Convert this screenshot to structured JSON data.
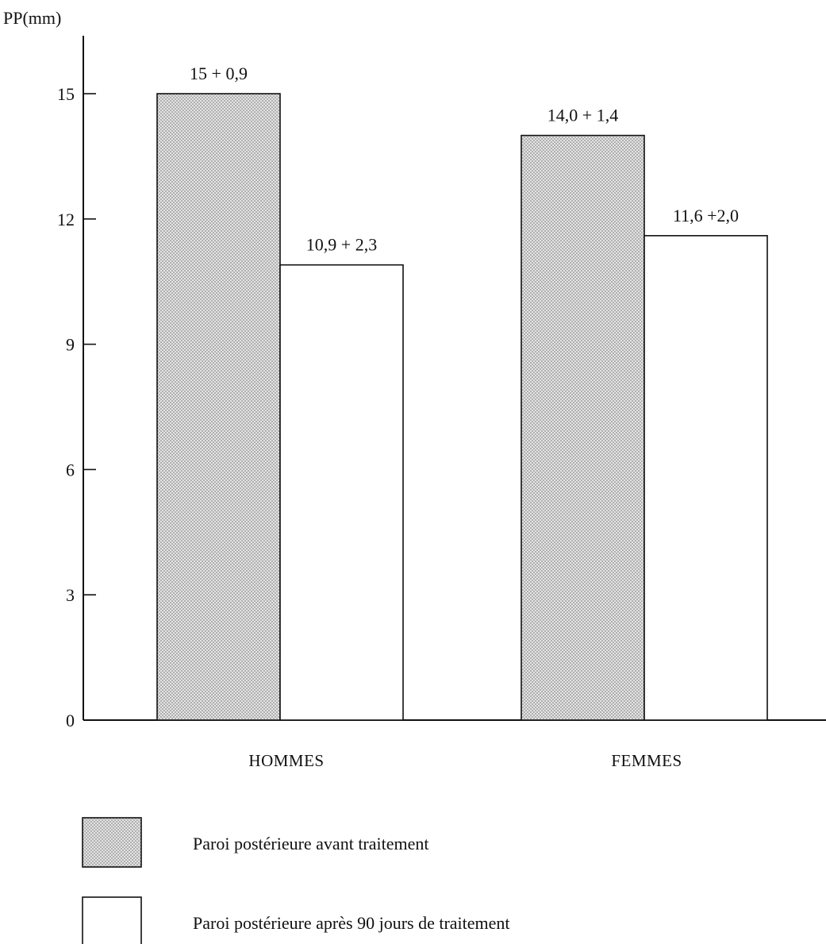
{
  "chart_data": {
    "type": "bar",
    "ylabel": "PP(mm)",
    "ylim": [
      0,
      15
    ],
    "yticks": [
      0,
      3,
      6,
      9,
      12,
      15
    ],
    "grid": false,
    "legend_position": "bottom-left",
    "categories": [
      "HOMMES",
      "FEMMES"
    ],
    "series": [
      {
        "name": "Paroi postérieure avant traitement",
        "values": [
          15,
          14.0
        ],
        "labels": [
          "15 + 0,9",
          "14,0 + 1,4"
        ],
        "fill": "pattern-dotted-gray"
      },
      {
        "name": "Paroi postérieure après 90 jours de traitement",
        "values": [
          10.9,
          11.6
        ],
        "labels": [
          "10,9 + 2,3",
          "11,6 +2,0"
        ],
        "fill": "white"
      }
    ]
  },
  "colors": {
    "ink": "#111111",
    "shade_dot": "#8a8a8a",
    "shade_bg": "#e4e4e4",
    "background": "#ffffff"
  }
}
